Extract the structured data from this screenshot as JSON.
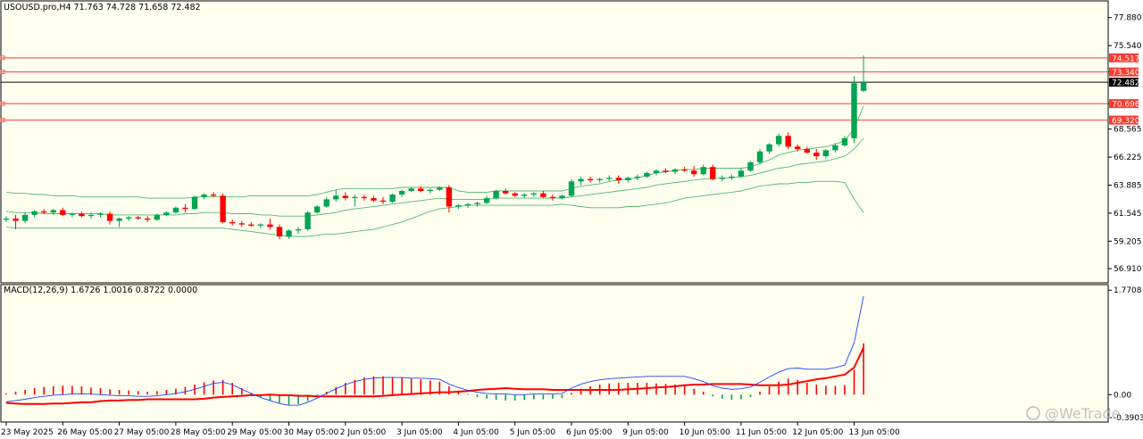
{
  "chart_data": [
    {
      "type": "candlestick",
      "title": "USOUSD.pro,H4  71.763 74.728 71.658 72.482",
      "ylim": [
        55.8,
        79.2
      ],
      "price_ticks": [
        "77.880",
        "75.540",
        "73.340",
        "70.696",
        "68.565",
        "66.225",
        "63.885",
        "61.545",
        "59.205",
        "56.910"
      ],
      "x_labels": [
        "23 May 2025",
        "26 May 05:00",
        "27 May 05:00",
        "28 May 05:00",
        "29 May 05:00",
        "30 May 05:00",
        "2 Jun 05:00",
        "3 Jun 05:00",
        "4 Jun 05:00",
        "5 Jun 05:00",
        "6 Jun 05:00",
        "9 Jun 05:00",
        "10 Jun 05:00",
        "11 Jun 05:00",
        "12 Jun 05:00",
        "13 Jun 05:00"
      ],
      "current_price": {
        "label": "72.482",
        "value": 72.482
      },
      "levels": [
        {
          "label": "74.517",
          "value": 74.517
        },
        {
          "label": "73.340",
          "value": 73.34
        },
        {
          "label": "70.696",
          "value": 70.696
        },
        {
          "label": "69.320",
          "value": 69.32
        }
      ],
      "candles": [
        [
          61.0,
          61.3,
          60.8,
          61.1
        ],
        [
          61.1,
          61.4,
          60.2,
          60.9
        ],
        [
          60.9,
          61.6,
          60.7,
          61.4
        ],
        [
          61.4,
          61.8,
          61.2,
          61.7
        ],
        [
          61.7,
          61.9,
          61.5,
          61.6
        ],
        [
          61.6,
          61.9,
          61.4,
          61.8
        ],
        [
          61.8,
          62.0,
          61.3,
          61.4
        ],
        [
          61.4,
          61.6,
          61.2,
          61.5
        ],
        [
          61.5,
          61.7,
          61.2,
          61.3
        ],
        [
          61.3,
          61.6,
          61.1,
          61.4
        ],
        [
          61.4,
          61.6,
          61.2,
          61.5
        ],
        [
          61.5,
          61.7,
          60.6,
          60.9
        ],
        [
          60.9,
          61.2,
          60.4,
          61.1
        ],
        [
          61.1,
          61.3,
          60.9,
          61.2
        ],
        [
          61.2,
          61.3,
          61.0,
          61.1
        ],
        [
          61.1,
          61.3,
          60.8,
          61.0
        ],
        [
          61.0,
          61.5,
          60.9,
          61.4
        ],
        [
          61.4,
          61.7,
          61.3,
          61.6
        ],
        [
          61.6,
          62.1,
          61.5,
          62.0
        ],
        [
          62.0,
          62.3,
          61.6,
          61.9
        ],
        [
          61.9,
          63.0,
          61.8,
          62.9
        ],
        [
          62.9,
          63.2,
          62.7,
          63.1
        ],
        [
          63.1,
          63.3,
          62.9,
          63.0
        ],
        [
          63.0,
          63.2,
          60.7,
          60.8
        ],
        [
          60.8,
          61.0,
          60.5,
          60.7
        ],
        [
          60.7,
          60.9,
          60.4,
          60.6
        ],
        [
          60.6,
          60.8,
          60.4,
          60.5
        ],
        [
          60.5,
          60.7,
          60.3,
          60.6
        ],
        [
          60.6,
          61.1,
          60.2,
          60.4
        ],
        [
          60.4,
          60.6,
          59.4,
          59.6
        ],
        [
          59.6,
          60.2,
          59.4,
          60.1
        ],
        [
          60.1,
          60.4,
          59.8,
          60.2
        ],
        [
          60.2,
          61.7,
          60.1,
          61.6
        ],
        [
          61.6,
          62.2,
          61.5,
          62.1
        ],
        [
          62.1,
          62.9,
          62.0,
          62.7
        ],
        [
          62.7,
          63.5,
          62.5,
          63.0
        ],
        [
          63.0,
          63.3,
          62.6,
          62.8
        ],
        [
          62.8,
          63.1,
          62.1,
          62.9
        ],
        [
          62.9,
          63.1,
          62.6,
          62.8
        ],
        [
          62.8,
          63.0,
          62.5,
          62.6
        ],
        [
          62.6,
          62.9,
          62.3,
          62.5
        ],
        [
          62.5,
          63.2,
          62.4,
          63.1
        ],
        [
          63.1,
          63.5,
          62.9,
          63.4
        ],
        [
          63.4,
          63.7,
          63.3,
          63.6
        ],
        [
          63.6,
          63.8,
          63.3,
          63.4
        ],
        [
          63.4,
          63.6,
          63.2,
          63.5
        ],
        [
          63.5,
          63.8,
          63.4,
          63.7
        ],
        [
          63.7,
          63.9,
          61.6,
          62.1
        ],
        [
          62.1,
          62.3,
          61.9,
          62.2
        ],
        [
          62.2,
          62.4,
          62.0,
          62.3
        ],
        [
          62.3,
          62.5,
          62.1,
          62.4
        ],
        [
          62.4,
          63.0,
          62.3,
          62.8
        ],
        [
          62.8,
          63.5,
          62.7,
          63.4
        ],
        [
          63.4,
          63.6,
          63.1,
          63.2
        ],
        [
          63.2,
          63.3,
          62.9,
          63.0
        ],
        [
          63.0,
          63.2,
          62.8,
          63.1
        ],
        [
          63.1,
          63.3,
          62.9,
          63.2
        ],
        [
          63.2,
          63.4,
          62.8,
          62.9
        ],
        [
          62.9,
          63.1,
          62.6,
          62.8
        ],
        [
          62.8,
          63.1,
          62.7,
          63.0
        ],
        [
          63.0,
          64.4,
          62.9,
          64.2
        ],
        [
          64.2,
          64.6,
          63.9,
          64.4
        ],
        [
          64.4,
          64.6,
          64.1,
          64.3
        ],
        [
          64.3,
          64.5,
          64.1,
          64.4
        ],
        [
          64.4,
          64.7,
          64.2,
          64.5
        ],
        [
          64.5,
          64.7,
          64.0,
          64.3
        ],
        [
          64.3,
          64.6,
          64.1,
          64.5
        ],
        [
          64.5,
          64.8,
          64.3,
          64.6
        ],
        [
          64.6,
          65.0,
          64.5,
          64.9
        ],
        [
          64.9,
          65.2,
          64.7,
          65.1
        ],
        [
          65.1,
          65.3,
          64.9,
          65.0
        ],
        [
          65.0,
          65.3,
          64.8,
          65.2
        ],
        [
          65.2,
          65.4,
          65.0,
          65.1
        ],
        [
          65.1,
          65.5,
          64.6,
          64.8
        ],
        [
          64.8,
          65.6,
          64.7,
          65.4
        ],
        [
          65.4,
          65.6,
          64.3,
          64.4
        ],
        [
          64.4,
          64.7,
          64.2,
          64.5
        ],
        [
          64.5,
          64.8,
          64.3,
          64.6
        ],
        [
          64.6,
          65.3,
          64.5,
          65.1
        ],
        [
          65.1,
          65.9,
          65.0,
          65.8
        ],
        [
          65.8,
          66.9,
          65.6,
          66.7
        ],
        [
          66.7,
          67.4,
          66.5,
          67.3
        ],
        [
          67.3,
          68.2,
          67.1,
          68.0
        ],
        [
          68.0,
          68.3,
          66.9,
          67.1
        ],
        [
          67.1,
          67.3,
          66.7,
          66.9
        ],
        [
          66.9,
          67.1,
          66.5,
          66.6
        ],
        [
          66.6,
          66.9,
          66.0,
          66.3
        ],
        [
          66.3,
          66.9,
          66.1,
          66.8
        ],
        [
          66.8,
          67.4,
          66.6,
          67.2
        ],
        [
          67.2,
          68.0,
          67.1,
          67.8
        ],
        [
          67.8,
          73.0,
          67.4,
          72.4
        ],
        [
          71.763,
          74.728,
          71.658,
          72.482
        ]
      ],
      "bollinger": {
        "upper": [
          63.3,
          63.2,
          63.2,
          63.1,
          63.1,
          63.0,
          63.0,
          63.0,
          62.9,
          62.9,
          62.9,
          62.9,
          62.9,
          62.9,
          62.9,
          62.8,
          62.8,
          62.8,
          62.8,
          62.8,
          62.9,
          62.9,
          62.9,
          62.9,
          62.9,
          62.9,
          63.0,
          63.0,
          63.0,
          63.0,
          63.0,
          63.0,
          63.0,
          63.1,
          63.3,
          63.5,
          63.6,
          63.6,
          63.6,
          63.6,
          63.6,
          63.6,
          63.7,
          63.7,
          63.7,
          63.7,
          63.7,
          63.7,
          63.4,
          63.3,
          63.3,
          63.3,
          63.4,
          63.4,
          63.4,
          63.4,
          63.4,
          63.4,
          63.4,
          63.4,
          63.6,
          63.8,
          63.9,
          64.0,
          64.2,
          64.3,
          64.4,
          64.5,
          64.7,
          64.9,
          65.0,
          65.1,
          65.2,
          65.2,
          65.3,
          65.3,
          65.3,
          65.3,
          65.3,
          65.4,
          65.7,
          66.0,
          66.4,
          66.6,
          66.8,
          66.9,
          67.0,
          67.1,
          67.3,
          67.6,
          68.6,
          70.5
        ],
        "middle": [
          61.7,
          61.6,
          61.6,
          61.6,
          61.5,
          61.5,
          61.5,
          61.5,
          61.5,
          61.5,
          61.5,
          61.4,
          61.4,
          61.4,
          61.4,
          61.4,
          61.4,
          61.4,
          61.4,
          61.5,
          61.5,
          61.6,
          61.6,
          61.6,
          61.5,
          61.5,
          61.5,
          61.4,
          61.4,
          61.3,
          61.3,
          61.3,
          61.3,
          61.4,
          61.5,
          61.6,
          61.8,
          61.9,
          62.0,
          62.1,
          62.2,
          62.3,
          62.4,
          62.5,
          62.6,
          62.7,
          62.8,
          62.7,
          62.7,
          62.7,
          62.7,
          62.7,
          62.8,
          62.8,
          62.8,
          62.8,
          62.8,
          62.8,
          62.8,
          62.8,
          62.9,
          63.0,
          63.1,
          63.2,
          63.3,
          63.4,
          63.5,
          63.6,
          63.7,
          63.9,
          64.0,
          64.1,
          64.2,
          64.3,
          64.4,
          64.4,
          64.5,
          64.5,
          64.6,
          64.7,
          64.9,
          65.1,
          65.3,
          65.4,
          65.6,
          65.7,
          65.8,
          65.9,
          66.1,
          66.3,
          66.9,
          67.8
        ],
        "lower": [
          60.4,
          60.3,
          60.3,
          60.3,
          60.3,
          60.3,
          60.3,
          60.3,
          60.3,
          60.3,
          60.3,
          60.3,
          60.3,
          60.3,
          60.3,
          60.3,
          60.3,
          60.3,
          60.3,
          60.3,
          60.3,
          60.3,
          60.3,
          60.3,
          60.2,
          60.1,
          60.0,
          59.9,
          59.8,
          59.7,
          59.6,
          59.6,
          59.6,
          59.7,
          59.8,
          59.8,
          59.9,
          60.0,
          60.1,
          60.2,
          60.4,
          60.6,
          60.8,
          61.1,
          61.4,
          61.7,
          61.9,
          62.0,
          62.1,
          62.2,
          62.2,
          62.2,
          62.2,
          62.2,
          62.2,
          62.2,
          62.2,
          62.2,
          62.2,
          62.3,
          62.2,
          62.1,
          62.0,
          62.0,
          62.0,
          62.0,
          62.1,
          62.1,
          62.2,
          62.3,
          62.4,
          62.6,
          62.8,
          62.9,
          63.0,
          63.1,
          63.2,
          63.3,
          63.4,
          63.6,
          63.8,
          63.9,
          64.0,
          64.0,
          64.1,
          64.1,
          64.2,
          64.2,
          64.2,
          64.1,
          62.7,
          61.6
        ]
      }
    },
    {
      "type": "macd",
      "title": "MACD(12,26,9) 1.6726 1.0016 0.8722 0.0000",
      "ylim": [
        -0.45,
        1.85
      ],
      "value_ticks": [
        "1.7708",
        "0.00",
        "-0.3903"
      ],
      "histogram": [
        0.02,
        0.05,
        0.08,
        0.11,
        0.13,
        0.14,
        0.15,
        0.15,
        0.14,
        0.12,
        0.11,
        0.09,
        0.08,
        0.07,
        0.06,
        0.05,
        0.06,
        0.08,
        0.1,
        0.13,
        0.17,
        0.21,
        0.24,
        0.25,
        0.2,
        0.11,
        0.03,
        -0.04,
        -0.1,
        -0.14,
        -0.17,
        -0.16,
        -0.11,
        -0.03,
        0.05,
        0.13,
        0.2,
        0.25,
        0.29,
        0.31,
        0.31,
        0.3,
        0.29,
        0.27,
        0.26,
        0.24,
        0.22,
        0.14,
        0.07,
        0.01,
        -0.04,
        -0.07,
        -0.09,
        -0.1,
        -0.1,
        -0.09,
        -0.08,
        -0.08,
        -0.07,
        -0.06,
        0.03,
        0.1,
        0.14,
        0.17,
        0.19,
        0.2,
        0.2,
        0.2,
        0.2,
        0.19,
        0.18,
        0.17,
        0.15,
        0.1,
        0.05,
        -0.03,
        -0.07,
        -0.09,
        -0.08,
        -0.04,
        0.05,
        0.14,
        0.22,
        0.27,
        0.25,
        0.2,
        0.17,
        0.15,
        0.15,
        0.16,
        0.42,
        0.87
      ],
      "macd": [
        -0.12,
        -0.1,
        -0.08,
        -0.05,
        -0.03,
        -0.01,
        0.0,
        0.01,
        0.01,
        0.01,
        0.0,
        -0.01,
        -0.02,
        -0.02,
        -0.03,
        -0.03,
        -0.02,
        0.0,
        0.02,
        0.05,
        0.09,
        0.14,
        0.19,
        0.21,
        0.17,
        0.09,
        0.02,
        -0.05,
        -0.1,
        -0.15,
        -0.18,
        -0.18,
        -0.13,
        -0.06,
        0.02,
        0.1,
        0.17,
        0.22,
        0.26,
        0.28,
        0.29,
        0.29,
        0.29,
        0.28,
        0.28,
        0.27,
        0.26,
        0.18,
        0.12,
        0.07,
        0.04,
        0.02,
        0.01,
        0.01,
        0.0,
        0.0,
        0.01,
        0.01,
        0.01,
        0.02,
        0.11,
        0.18,
        0.22,
        0.25,
        0.27,
        0.28,
        0.29,
        0.3,
        0.31,
        0.31,
        0.31,
        0.31,
        0.31,
        0.27,
        0.22,
        0.15,
        0.11,
        0.09,
        0.1,
        0.13,
        0.21,
        0.3,
        0.38,
        0.44,
        0.45,
        0.43,
        0.43,
        0.43,
        0.46,
        0.5,
        0.88,
        1.6726
      ],
      "signal": [
        -0.14,
        -0.15,
        -0.16,
        -0.16,
        -0.16,
        -0.15,
        -0.15,
        -0.14,
        -0.13,
        -0.13,
        -0.11,
        -0.1,
        -0.1,
        -0.09,
        -0.09,
        -0.08,
        -0.08,
        -0.08,
        -0.08,
        -0.08,
        -0.08,
        -0.07,
        -0.05,
        -0.04,
        -0.03,
        -0.02,
        -0.01,
        -0.01,
        0.0,
        -0.01,
        -0.01,
        -0.02,
        -0.02,
        -0.03,
        -0.03,
        -0.03,
        -0.03,
        -0.03,
        -0.03,
        -0.03,
        -0.02,
        -0.01,
        0.0,
        0.01,
        0.02,
        0.03,
        0.04,
        0.04,
        0.05,
        0.06,
        0.08,
        0.09,
        0.1,
        0.11,
        0.1,
        0.09,
        0.09,
        0.09,
        0.08,
        0.08,
        0.08,
        0.08,
        0.08,
        0.08,
        0.08,
        0.08,
        0.09,
        0.1,
        0.11,
        0.12,
        0.13,
        0.14,
        0.16,
        0.17,
        0.17,
        0.18,
        0.18,
        0.18,
        0.18,
        0.17,
        0.16,
        0.16,
        0.16,
        0.17,
        0.2,
        0.23,
        0.26,
        0.28,
        0.31,
        0.34,
        0.46,
        0.8
      ]
    }
  ],
  "colors": {
    "bull": "#00a550",
    "bear": "#ff0000",
    "band": "#52b96f",
    "macd_line": "#2040ff",
    "signal_line": "#ff0000",
    "level": "#ff3b30",
    "current": "#000000",
    "background": "#fffff0"
  },
  "watermark": "@WeTrade"
}
